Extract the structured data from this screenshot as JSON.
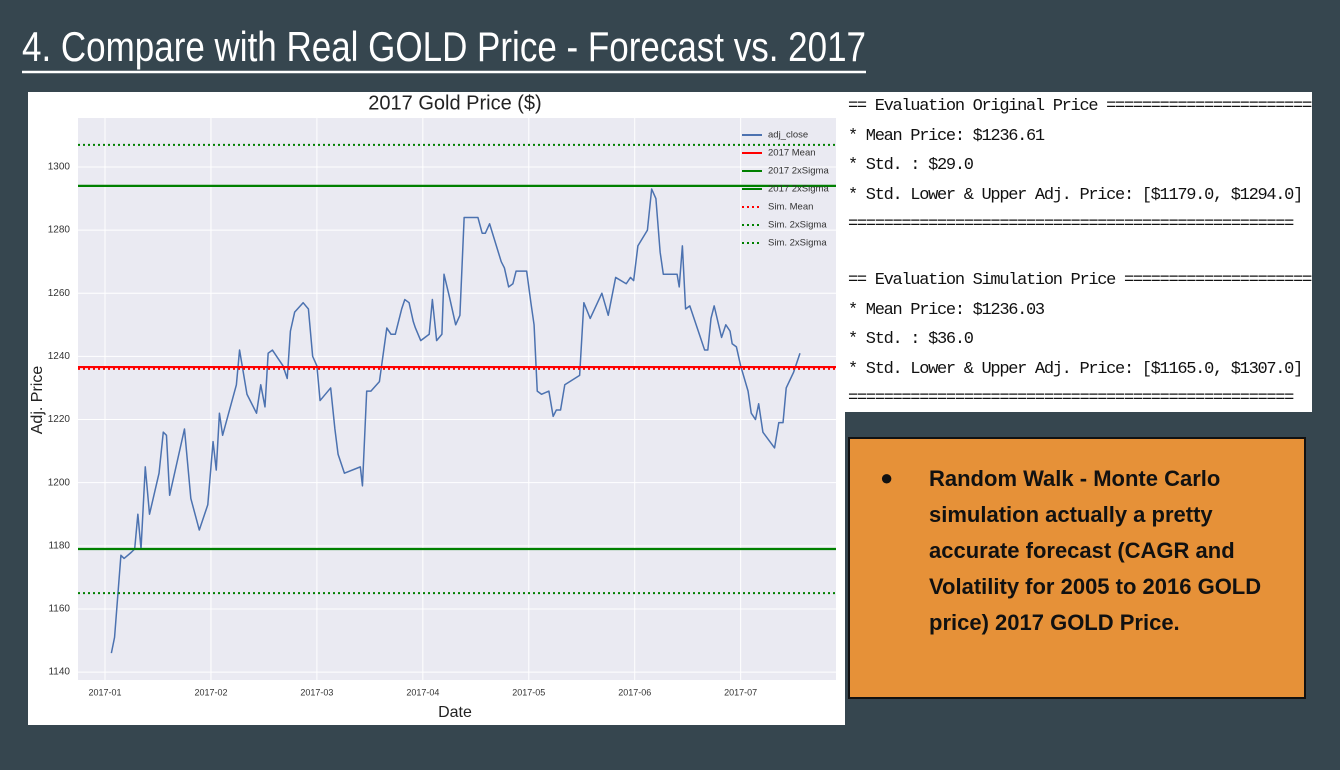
{
  "title": "4. Compare with Real GOLD Price - Forecast vs. 2017",
  "chart_data": {
    "type": "line",
    "title": "2017 Gold Price ($)",
    "xlabel": "Date",
    "ylabel": "Adj. Price",
    "x": [
      1.06,
      1.09,
      1.15,
      1.18,
      1.25,
      1.28,
      1.31,
      1.34,
      1.38,
      1.42,
      1.51,
      1.55,
      1.58,
      1.61,
      1.75,
      1.81,
      1.89,
      1.97,
      2.02,
      2.05,
      2.08,
      2.11,
      2.24,
      2.27,
      2.34,
      2.43,
      2.47,
      2.51,
      2.54,
      2.58,
      2.68,
      2.72,
      2.75,
      2.79,
      2.87,
      2.92,
      2.96,
      3.0,
      3.03,
      3.13,
      3.17,
      3.2,
      3.26,
      3.41,
      3.43,
      3.47,
      3.51,
      3.59,
      3.66,
      3.7,
      3.74,
      3.8,
      3.83,
      3.87,
      3.91,
      3.93,
      3.98,
      4.06,
      4.09,
      4.13,
      4.18,
      4.2,
      4.25,
      4.31,
      4.35,
      4.39,
      4.42,
      4.52,
      4.56,
      4.59,
      4.63,
      4.74,
      4.77,
      4.81,
      4.85,
      4.88,
      4.98,
      5.02,
      5.05,
      5.08,
      5.12,
      5.19,
      5.23,
      5.26,
      5.3,
      5.34,
      5.48,
      5.52,
      5.58,
      5.69,
      5.75,
      5.82,
      5.92,
      5.96,
      5.99,
      6.03,
      6.12,
      6.16,
      6.2,
      6.24,
      6.27,
      6.36,
      6.4,
      6.42,
      6.45,
      6.48,
      6.52,
      6.61,
      6.66,
      6.69,
      6.72,
      6.75,
      6.82,
      6.86,
      6.9,
      6.92,
      6.96,
      7.0,
      7.07,
      7.1,
      7.14,
      7.17,
      7.21,
      7.32,
      7.36,
      7.4,
      7.43,
      7.5,
      7.56
    ],
    "xlim": [
      0.745,
      7.9
    ],
    "xticks": [
      {
        "value": 1,
        "label": "2017-01"
      },
      {
        "value": 2,
        "label": "2017-02"
      },
      {
        "value": 3,
        "label": "2017-03"
      },
      {
        "value": 4,
        "label": "2017-04"
      },
      {
        "value": 5,
        "label": "2017-05"
      },
      {
        "value": 6,
        "label": "2017-06"
      },
      {
        "value": 7,
        "label": "2017-07"
      }
    ],
    "ylim": [
      1137.5,
      1315.5
    ],
    "yticks": [
      1140,
      1160,
      1180,
      1200,
      1220,
      1240,
      1260,
      1280,
      1300
    ],
    "grid": true,
    "legend": "upper right",
    "series": [
      {
        "name": "adj_close",
        "color": "#4c72b0",
        "style": "solid",
        "values": [
          1146,
          1151,
          1177,
          1176,
          1178,
          1179,
          1190,
          1179,
          1205,
          1190,
          1203,
          1216,
          1215,
          1196,
          1217,
          1195,
          1185,
          1193,
          1213,
          1204,
          1222,
          1215,
          1231,
          1242,
          1228,
          1222,
          1231,
          1224,
          1241,
          1242,
          1237,
          1233,
          1248,
          1254,
          1257,
          1255,
          1240,
          1237,
          1226,
          1230,
          1217,
          1209,
          1203,
          1205,
          1199,
          1229,
          1229,
          1232,
          1249,
          1247,
          1247,
          1255,
          1258,
          1257,
          1251,
          1249,
          1245,
          1247,
          1258,
          1245,
          1247,
          1266,
          1259,
          1250,
          1253,
          1284,
          1284,
          1284,
          1279,
          1279,
          1282,
          1270,
          1268,
          1262,
          1263,
          1267,
          1267,
          1257,
          1250,
          1229,
          1228,
          1229,
          1221,
          1223,
          1223,
          1231,
          1234,
          1257,
          1252,
          1260,
          1253,
          1265,
          1263,
          1265,
          1264,
          1275,
          1280,
          1293,
          1290,
          1273,
          1266,
          1266,
          1266,
          1262,
          1275,
          1255,
          1256,
          1247,
          1242,
          1242,
          1252,
          1256,
          1246,
          1250,
          1248,
          1244,
          1243,
          1237,
          1229,
          1222,
          1220,
          1225,
          1216,
          1211,
          1219,
          1219,
          1230,
          1235,
          1241
        ]
      },
      {
        "name": "2017 Mean",
        "color": "#ff0000",
        "style": "solid",
        "hline": 1236.61
      },
      {
        "name": "2017 2xSigma",
        "color": "#008000",
        "style": "solid",
        "hline": 1179.0
      },
      {
        "name": "2017 2xSigma",
        "color": "#008000",
        "style": "solid",
        "hline": 1294.0
      },
      {
        "name": "Sim. Mean",
        "color": "#ff0000",
        "style": "dotted",
        "hline": 1236.03
      },
      {
        "name": "Sim. 2xSigma",
        "color": "#008000",
        "style": "dotted",
        "hline": 1165.0
      },
      {
        "name": "Sim. 2xSigma",
        "color": "#008000",
        "style": "dotted",
        "hline": 1307.0
      }
    ]
  },
  "evaluations": [
    {
      "lines": [
        "== Evaluation Original Price ========================",
        "* Mean Price: $1236.61",
        "* Std. : $29.0",
        "* Std. Lower & Upper Adj. Price: [$1179.0, $1294.0]",
        "=================================================="
      ]
    },
    {
      "lines": [
        "== Evaluation Simulation Price ======================",
        "* Mean Price: $1236.03",
        "* Std. : $36.0",
        "* Std. Lower & Upper Adj. Price: [$1165.0, $1307.0]",
        "=================================================="
      ]
    }
  ],
  "note": {
    "text": "Random Walk - Monte Carlo simulation actually a pretty accurate forecast (CAGR and Volatility for 2005 to 2016 GOLD price) 2017 GOLD Price."
  }
}
